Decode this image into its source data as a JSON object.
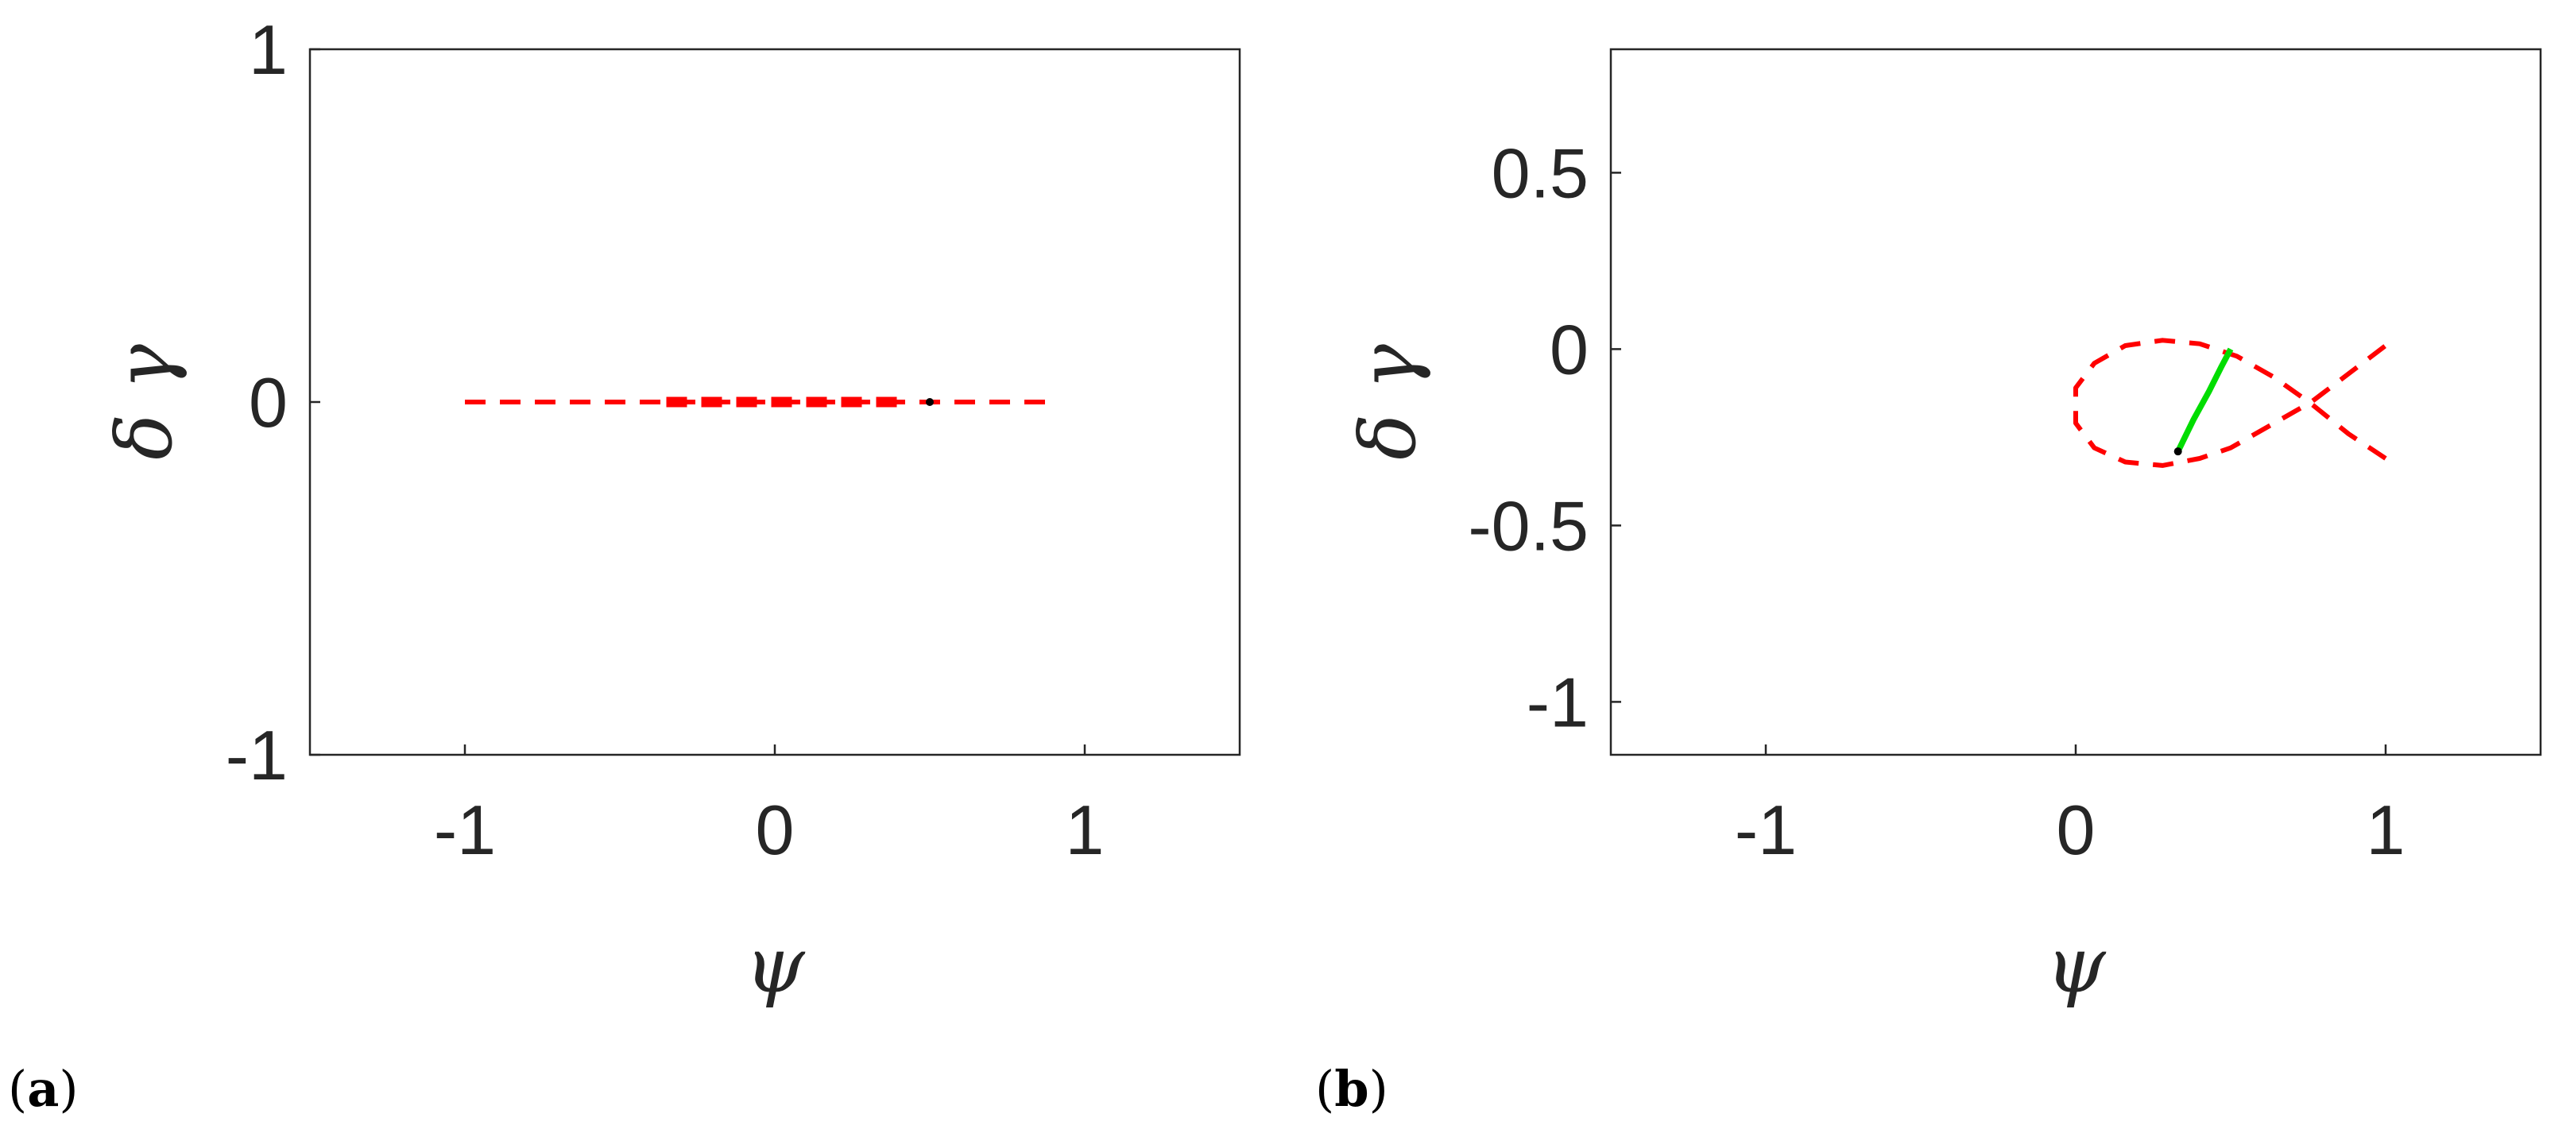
{
  "chart_data": [
    {
      "panel_label": "a",
      "type": "line",
      "xlabel": "ψ",
      "ylabel": "δ γ",
      "xlim": [
        -1.5,
        1.5
      ],
      "ylim": [
        -1,
        1
      ],
      "xticks": [
        -1,
        0,
        1
      ],
      "xtick_labels": [
        "-1",
        "0",
        "1"
      ],
      "yticks": [
        -1,
        0,
        1
      ],
      "ytick_labels": [
        "-1",
        "0",
        "1"
      ],
      "grid": false,
      "colors": {
        "dashed": "#ff0000",
        "solid": "#00dd00",
        "point": "#000000"
      },
      "series": [
        {
          "style": "dashed",
          "x": [
            -1.0,
            -0.75,
            -0.5,
            -0.25,
            0.0,
            0.25,
            0.5,
            0.75,
            0.9
          ],
          "y": [
            0,
            0,
            0,
            0,
            0,
            0,
            0,
            0,
            0
          ]
        },
        {
          "style": "dashed-thick",
          "x": [
            -0.35,
            -0.2,
            0.0,
            0.2,
            0.4
          ],
          "y": [
            0,
            0,
            0,
            0,
            0
          ]
        }
      ],
      "points": [
        {
          "x": 0.5,
          "y": 0.0
        }
      ]
    },
    {
      "panel_label": "b",
      "type": "line",
      "xlabel": "ψ",
      "ylabel": "δ γ",
      "xlim": [
        -1.5,
        1.5
      ],
      "ylim": [
        -1.15,
        0.85
      ],
      "xticks": [
        -1,
        0,
        1
      ],
      "xtick_labels": [
        "-1",
        "0",
        "1"
      ],
      "yticks": [
        -1,
        -0.5,
        0,
        0.5
      ],
      "ytick_labels": [
        "-1",
        "-0.5",
        "0",
        "0.5"
      ],
      "grid": false,
      "colors": {
        "dashed": "#ff0000",
        "solid": "#00dd00",
        "point": "#000000"
      },
      "series": [
        {
          "style": "dashed",
          "x": [
            1.0,
            0.88,
            0.76,
            0.64,
            0.52,
            0.4,
            0.28,
            0.16,
            0.06,
            0.0,
            0.0,
            0.06,
            0.16,
            0.28,
            0.4,
            0.5,
            0.62,
            0.76,
            0.88,
            1.0
          ],
          "y": [
            -0.31,
            -0.24,
            -0.155,
            -0.08,
            -0.02,
            0.015,
            0.025,
            0.01,
            -0.04,
            -0.11,
            -0.21,
            -0.28,
            -0.32,
            -0.33,
            -0.31,
            -0.28,
            -0.22,
            -0.15,
            -0.07,
            0.01
          ]
        },
        {
          "style": "solid",
          "x": [
            0.33,
            0.38,
            0.43,
            0.47,
            0.5
          ],
          "y": [
            -0.29,
            -0.2,
            -0.12,
            -0.05,
            0.0
          ]
        }
      ],
      "points": [
        {
          "x": 0.33,
          "y": -0.29
        }
      ]
    }
  ]
}
